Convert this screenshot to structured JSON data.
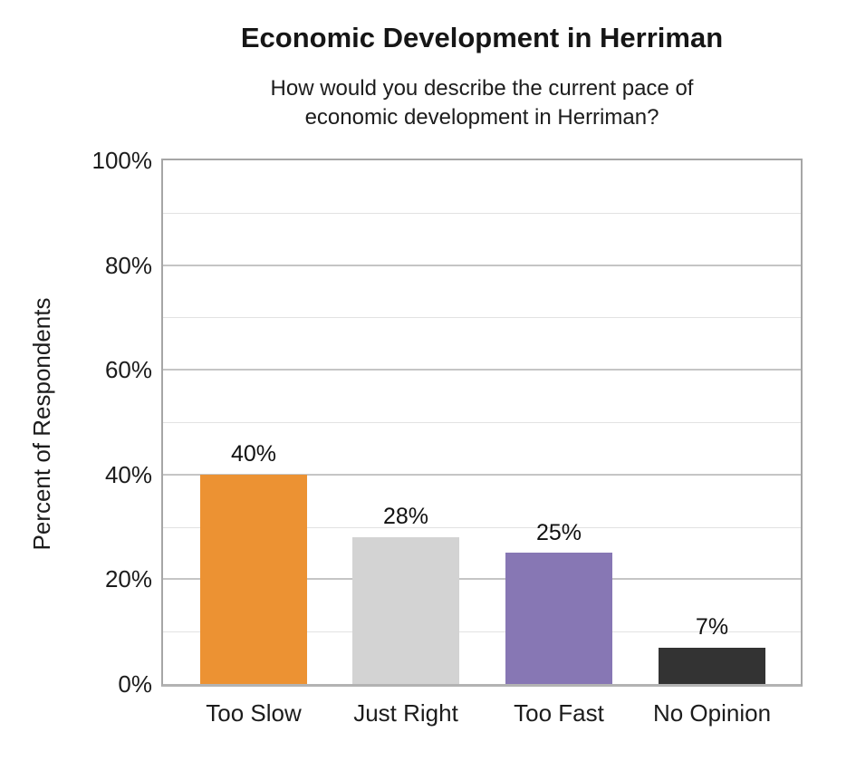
{
  "chart_data": {
    "type": "bar",
    "title": "Economic Development in Herriman",
    "subtitle": "How would you describe the current pace of economic development in Herriman?",
    "subtitle_lines": [
      "How would you describe the current pace of",
      "economic development in Herriman?"
    ],
    "ylabel": "Percent of Respondents",
    "xlabel": "",
    "categories": [
      "Too Slow",
      "Just Right",
      "Too Fast",
      "No Opinion"
    ],
    "values": [
      40,
      28,
      25,
      7
    ],
    "data_labels": [
      "40%",
      "28%",
      "25%",
      "7%"
    ],
    "bar_colors": [
      "#ec9233",
      "#d3d3d3",
      "#8777b4",
      "#333333"
    ],
    "ylim": [
      0,
      100
    ],
    "yticks": [
      0,
      20,
      40,
      60,
      80,
      100
    ],
    "ytick_labels": [
      "0%",
      "20%",
      "40%",
      "60%",
      "80%",
      "100%"
    ],
    "minor_gridlines": [
      10,
      30,
      50,
      70,
      90
    ],
    "grid": true,
    "legend": false,
    "colors": {
      "plot_border": "#a6a6a6",
      "x_axis_line": "#b3b3b3",
      "major_gridline": "#c5c5c5",
      "minor_gridline": "#e2e2e2",
      "title_text": "#161616",
      "body_text": "#1c1c1c"
    }
  }
}
